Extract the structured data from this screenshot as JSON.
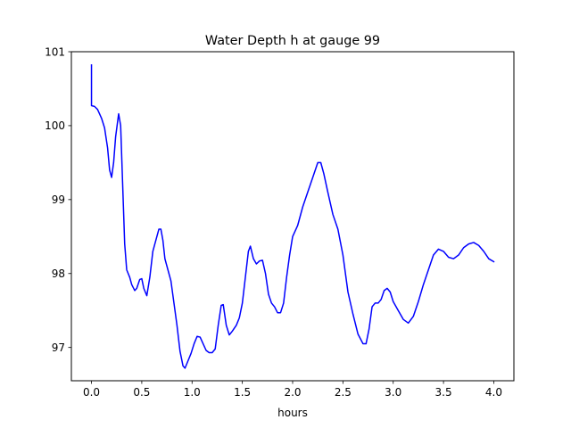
{
  "chart_data": {
    "type": "line",
    "title": "Water Depth h at gauge 99",
    "xlabel": "hours",
    "ylabel": "",
    "xlim": [
      -0.2,
      4.2
    ],
    "ylim": [
      96.55,
      101.0
    ],
    "xticks": [
      0.0,
      0.5,
      1.0,
      1.5,
      2.0,
      2.5,
      3.0,
      3.5,
      4.0
    ],
    "xtick_labels": [
      "0.0",
      "0.5",
      "1.0",
      "1.5",
      "2.0",
      "2.5",
      "3.0",
      "3.5",
      "4.0"
    ],
    "yticks": [
      97,
      98,
      99,
      100,
      101
    ],
    "ytick_labels": [
      "97",
      "98",
      "99",
      "100",
      "101"
    ],
    "grid": false,
    "series": [
      {
        "color": "#0000ff",
        "points": [
          [
            0.0,
            100.82
          ],
          [
            0.0,
            100.27
          ],
          [
            0.03,
            100.26
          ],
          [
            0.06,
            100.22
          ],
          [
            0.1,
            100.1
          ],
          [
            0.13,
            99.97
          ],
          [
            0.16,
            99.7
          ],
          [
            0.18,
            99.4
          ],
          [
            0.2,
            99.3
          ],
          [
            0.22,
            99.5
          ],
          [
            0.24,
            99.85
          ],
          [
            0.27,
            100.16
          ],
          [
            0.29,
            100.0
          ],
          [
            0.31,
            99.2
          ],
          [
            0.33,
            98.4
          ],
          [
            0.35,
            98.05
          ],
          [
            0.38,
            97.95
          ],
          [
            0.4,
            97.85
          ],
          [
            0.43,
            97.77
          ],
          [
            0.45,
            97.8
          ],
          [
            0.48,
            97.92
          ],
          [
            0.5,
            97.93
          ],
          [
            0.52,
            97.8
          ],
          [
            0.55,
            97.7
          ],
          [
            0.58,
            97.95
          ],
          [
            0.61,
            98.3
          ],
          [
            0.64,
            98.45
          ],
          [
            0.67,
            98.6
          ],
          [
            0.69,
            98.6
          ],
          [
            0.71,
            98.45
          ],
          [
            0.73,
            98.2
          ],
          [
            0.76,
            98.05
          ],
          [
            0.79,
            97.9
          ],
          [
            0.82,
            97.6
          ],
          [
            0.85,
            97.3
          ],
          [
            0.88,
            96.95
          ],
          [
            0.91,
            96.75
          ],
          [
            0.93,
            96.72
          ],
          [
            0.96,
            96.82
          ],
          [
            0.99,
            96.92
          ],
          [
            1.02,
            97.05
          ],
          [
            1.05,
            97.15
          ],
          [
            1.08,
            97.14
          ],
          [
            1.11,
            97.05
          ],
          [
            1.14,
            96.96
          ],
          [
            1.17,
            96.93
          ],
          [
            1.2,
            96.93
          ],
          [
            1.23,
            96.98
          ],
          [
            1.26,
            97.3
          ],
          [
            1.29,
            97.57
          ],
          [
            1.31,
            97.58
          ],
          [
            1.34,
            97.3
          ],
          [
            1.37,
            97.17
          ],
          [
            1.4,
            97.22
          ],
          [
            1.44,
            97.3
          ],
          [
            1.47,
            97.4
          ],
          [
            1.5,
            97.6
          ],
          [
            1.53,
            97.95
          ],
          [
            1.56,
            98.3
          ],
          [
            1.58,
            98.37
          ],
          [
            1.61,
            98.2
          ],
          [
            1.64,
            98.13
          ],
          [
            1.67,
            98.17
          ],
          [
            1.7,
            98.18
          ],
          [
            1.73,
            98.0
          ],
          [
            1.76,
            97.72
          ],
          [
            1.79,
            97.6
          ],
          [
            1.82,
            97.55
          ],
          [
            1.85,
            97.47
          ],
          [
            1.88,
            97.47
          ],
          [
            1.91,
            97.6
          ],
          [
            1.94,
            97.95
          ],
          [
            1.97,
            98.25
          ],
          [
            2.0,
            98.5
          ],
          [
            2.05,
            98.65
          ],
          [
            2.1,
            98.9
          ],
          [
            2.15,
            99.1
          ],
          [
            2.2,
            99.3
          ],
          [
            2.25,
            99.5
          ],
          [
            2.28,
            99.5
          ],
          [
            2.31,
            99.35
          ],
          [
            2.35,
            99.1
          ],
          [
            2.4,
            98.8
          ],
          [
            2.45,
            98.6
          ],
          [
            2.5,
            98.25
          ],
          [
            2.55,
            97.75
          ],
          [
            2.6,
            97.45
          ],
          [
            2.65,
            97.18
          ],
          [
            2.7,
            97.05
          ],
          [
            2.73,
            97.05
          ],
          [
            2.76,
            97.25
          ],
          [
            2.79,
            97.55
          ],
          [
            2.82,
            97.6
          ],
          [
            2.85,
            97.6
          ],
          [
            2.88,
            97.65
          ],
          [
            2.91,
            97.77
          ],
          [
            2.94,
            97.8
          ],
          [
            2.97,
            97.75
          ],
          [
            3.0,
            97.62
          ],
          [
            3.05,
            97.5
          ],
          [
            3.1,
            97.38
          ],
          [
            3.15,
            97.33
          ],
          [
            3.2,
            97.42
          ],
          [
            3.25,
            97.62
          ],
          [
            3.3,
            97.85
          ],
          [
            3.35,
            98.05
          ],
          [
            3.4,
            98.25
          ],
          [
            3.45,
            98.33
          ],
          [
            3.5,
            98.3
          ],
          [
            3.55,
            98.22
          ],
          [
            3.6,
            98.2
          ],
          [
            3.65,
            98.25
          ],
          [
            3.7,
            98.35
          ],
          [
            3.75,
            98.4
          ],
          [
            3.8,
            98.42
          ],
          [
            3.85,
            98.38
          ],
          [
            3.9,
            98.3
          ],
          [
            3.95,
            98.2
          ],
          [
            4.0,
            98.16
          ]
        ]
      }
    ]
  }
}
